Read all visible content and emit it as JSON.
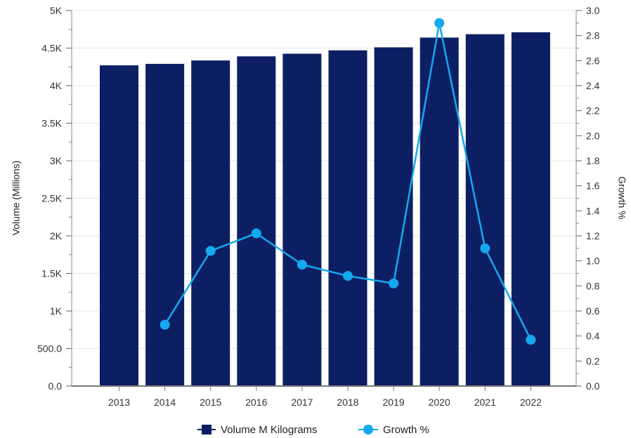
{
  "chart_data": {
    "type": "bar",
    "categories": [
      "2013",
      "2014",
      "2015",
      "2016",
      "2017",
      "2018",
      "2019",
      "2020",
      "2021",
      "2022"
    ],
    "series": [
      {
        "name": "Volume M Kilograms",
        "type": "bar",
        "axis": "left",
        "color": "#0d1f63",
        "values": [
          4270,
          4290,
          4335,
          4390,
          4425,
          4470,
          4510,
          4640,
          4685,
          4710
        ]
      },
      {
        "name": "Growth %",
        "type": "line",
        "axis": "right",
        "color": "#14a9ef",
        "values": [
          null,
          0.49,
          1.08,
          1.22,
          0.97,
          0.88,
          0.82,
          2.9,
          1.1,
          0.37
        ]
      }
    ],
    "ylabel": "Volume (Millions)",
    "y2label": "Growth %",
    "ylim": [
      0,
      5000
    ],
    "y2lim": [
      0,
      3.0
    ],
    "y_ticks": [
      "0.0",
      "500.0",
      "1K",
      "1.5K",
      "2K",
      "2.5K",
      "3K",
      "3.5K",
      "4K",
      "4.5K",
      "5K"
    ],
    "y2_ticks": [
      "0.0",
      "0.2",
      "0.4",
      "0.6",
      "0.8",
      "1.0",
      "1.2",
      "1.4",
      "1.6",
      "1.8",
      "2.0",
      "2.2",
      "2.4",
      "2.6",
      "2.8",
      "3.0"
    ],
    "grid": true,
    "legend_position": "bottom-center"
  }
}
